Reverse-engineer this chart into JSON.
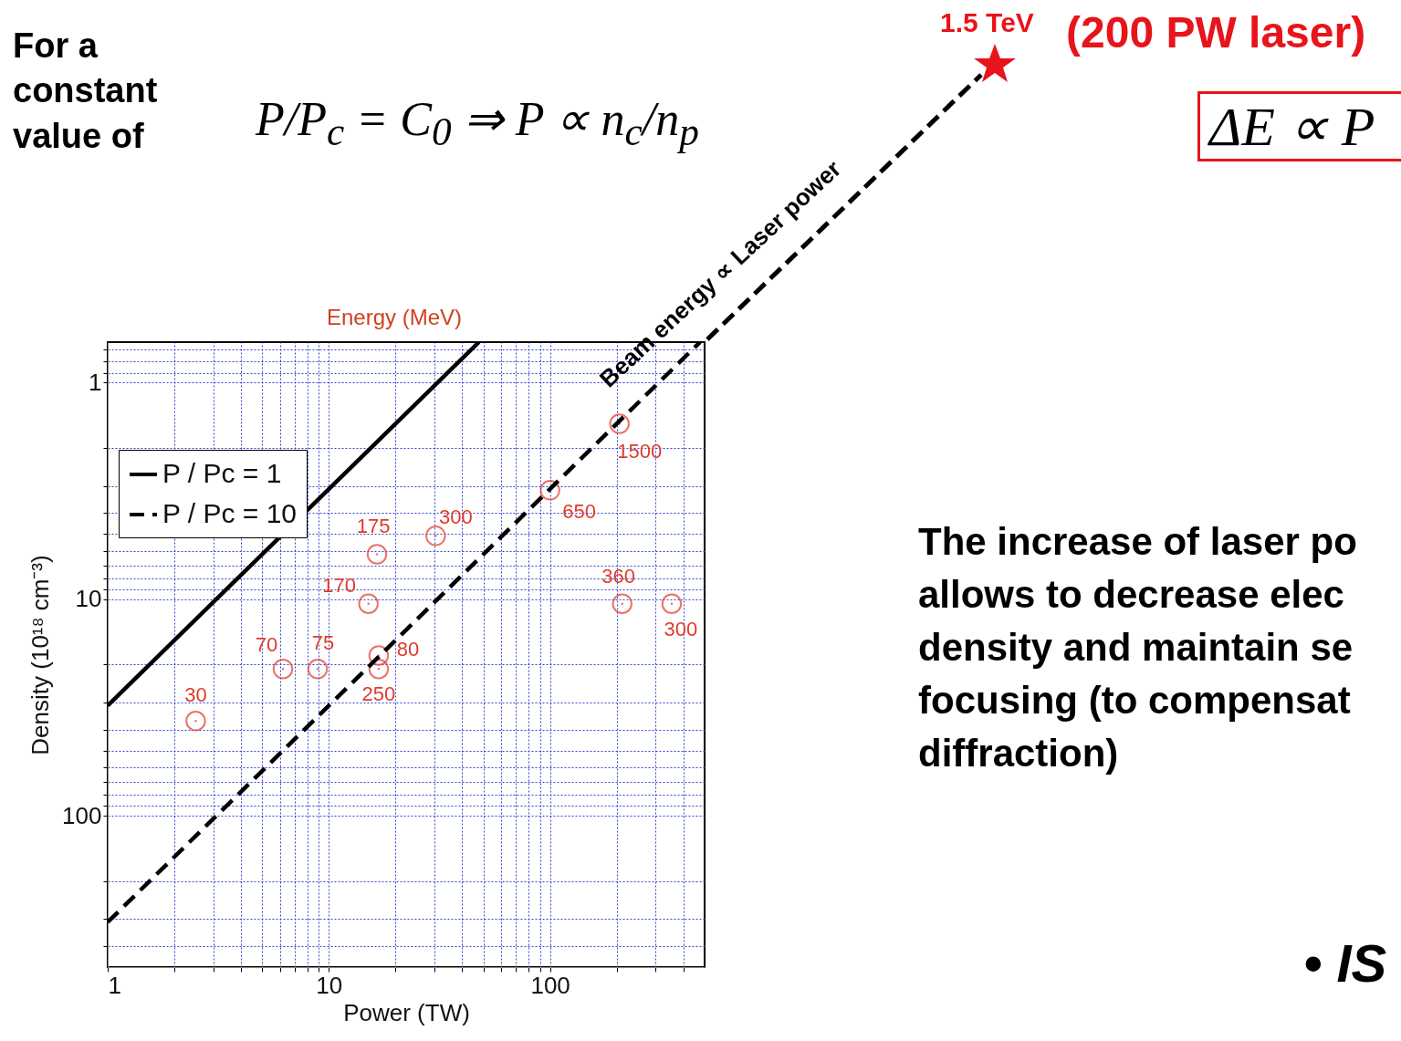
{
  "chart_data": {
    "type": "scatter",
    "xlabel": "Power (TW)",
    "ylabel": "Density (10¹⁸ cm⁻³)",
    "log": "xy",
    "grid": true,
    "legend": "left",
    "xlim": [
      1,
      500
    ],
    "ylim": [
      500,
      0.65
    ],
    "xticks": [
      1,
      {
        "value": 2,
        "label": null
      },
      {
        "value": 3,
        "label": null
      },
      {
        "value": 4,
        "label": null
      },
      {
        "value": 5,
        "label": null
      },
      {
        "value": 6,
        "label": null
      },
      {
        "value": 7,
        "label": null
      },
      {
        "value": 8,
        "label": null
      },
      {
        "value": 9,
        "label": null
      },
      10,
      {
        "value": 20,
        "label": null
      },
      {
        "value": 30,
        "label": null
      },
      {
        "value": 40,
        "label": null
      },
      {
        "value": 50,
        "label": null
      },
      {
        "value": 60,
        "label": null
      },
      {
        "value": 70,
        "label": null
      },
      {
        "value": 80,
        "label": null
      },
      {
        "value": 90,
        "label": null
      },
      100,
      {
        "value": 200,
        "label": null
      },
      {
        "value": 300,
        "label": null
      },
      {
        "value": 400,
        "label": null
      }
    ],
    "yticks": [
      {
        "value": 0.7,
        "label": null
      },
      {
        "value": 0.8,
        "label": null
      },
      {
        "value": 0.9,
        "label": null
      },
      1,
      {
        "value": 2,
        "label": null
      },
      {
        "value": 3,
        "label": null
      },
      {
        "value": 4,
        "label": null
      },
      {
        "value": 5,
        "label": null
      },
      {
        "value": 6,
        "label": null
      },
      {
        "value": 7,
        "label": null
      },
      {
        "value": 8,
        "label": null
      },
      {
        "value": 9,
        "label": null
      },
      10,
      {
        "value": 20,
        "label": null
      },
      {
        "value": 30,
        "label": null
      },
      {
        "value": 40,
        "label": null
      },
      {
        "value": 50,
        "label": null
      },
      {
        "value": 60,
        "label": null
      },
      {
        "value": 70,
        "label": null
      },
      {
        "value": 80,
        "label": null
      },
      {
        "value": 90,
        "label": null
      },
      100,
      {
        "value": 200,
        "label": null
      },
      {
        "value": 300,
        "label": null
      },
      {
        "value": 400,
        "label": null
      }
    ],
    "series": [
      {
        "color": "#e03a2c",
        "marker": "circle",
        "x": [
          2.5,
          6.2,
          8.9,
          16.5,
          15.1,
          16.8,
          16.8,
          30.4,
          100,
          206,
          212,
          355
        ],
        "values": [
          36.5,
          21,
          21,
          6.2,
          10.5,
          18.2,
          21,
          5.1,
          3.14,
          1.55,
          10.5,
          10.5
        ]
      },
      {
        "type": "line",
        "name": "P / Pc = 1",
        "color": "#000000",
        "line_style": "solid",
        "x": [
          1,
          47.7
        ],
        "values": [
          31,
          0.65
        ]
      },
      {
        "type": "line",
        "name": "P / Pc = 10",
        "color": "#000000",
        "line_style": "dashed",
        "x": [
          1,
          477
        ],
        "values": [
          310,
          0.65
        ]
      }
    ],
    "annotations": [
      {
        "text": "30",
        "x": 2.5,
        "y": 36.5
      },
      {
        "text": "70",
        "x": 6.2,
        "y": 21
      },
      {
        "text": "75",
        "x": 8.9,
        "y": 21
      },
      {
        "text": "175",
        "x": 16.5,
        "y": 6.2
      },
      {
        "text": "170",
        "x": 15.1,
        "y": 10.5
      },
      {
        "text": "80",
        "x": 16.8,
        "y": 18.2
      },
      {
        "text": "250",
        "x": 16.8,
        "y": 21
      },
      {
        "text": "300",
        "x": 30.4,
        "y": 5.1
      },
      {
        "text": "650",
        "x": 100,
        "y": 3.14
      },
      {
        "text": "1500",
        "x": 206,
        "y": 1.55
      },
      {
        "text": "360",
        "x": 212,
        "y": 10.5
      },
      {
        "text": "300",
        "x": 355,
        "y": 10.5
      },
      "For a constant value of",
      "P/P$_{c}$ = C$_{0}$ ⇒ P ∝ n$_{c}$/n$_{p}$",
      "Energy (MeV)",
      "Beam energy ∝ Laser power",
      "1.5 TeV",
      "(200 PW laser)",
      "ΔE ∝ P",
      "The increase of laser po allows to decrease elec density and maintain se focusing (to compensat diffraction)",
      "• IS"
    ]
  }
}
